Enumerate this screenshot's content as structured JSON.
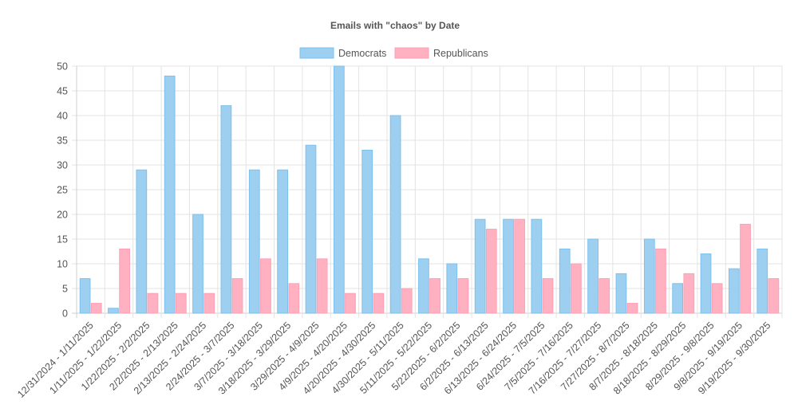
{
  "chart_data": {
    "type": "bar",
    "title": "Emails with \"chaos\" by Date",
    "xlabel": "",
    "ylabel": "",
    "ylim": [
      0,
      50
    ],
    "yticks": [
      0,
      5,
      10,
      15,
      20,
      25,
      30,
      35,
      40,
      45,
      50
    ],
    "grid": true,
    "legend_position": "top-center",
    "categories": [
      "12/31/2024 - 1/11/2025",
      "1/11/2025 - 1/22/2025",
      "1/22/2025 - 2/2/2025",
      "2/2/2025 - 2/13/2025",
      "2/13/2025 - 2/24/2025",
      "2/24/2025 - 3/7/2025",
      "3/7/2025 - 3/18/2025",
      "3/18/2025 - 3/29/2025",
      "3/29/2025 - 4/9/2025",
      "4/9/2025 - 4/20/2025",
      "4/20/2025 - 4/30/2025",
      "4/30/2025 - 5/11/2025",
      "5/11/2025 - 5/22/2025",
      "5/22/2025 - 6/2/2025",
      "6/2/2025 - 6/13/2025",
      "6/13/2025 - 6/24/2025",
      "6/24/2025 - 7/5/2025",
      "7/5/2025 - 7/16/2025",
      "7/16/2025 - 7/27/2025",
      "7/27/2025 - 8/7/2025",
      "8/7/2025 - 8/18/2025",
      "8/18/2025 - 8/29/2025",
      "8/29/2025 - 9/8/2025",
      "9/8/2025 - 9/19/2025",
      "9/19/2025 - 9/30/2025"
    ],
    "series": [
      {
        "name": "Democrats",
        "fill": "#9dd0f0",
        "stroke": "#7cc0ec",
        "values": [
          7,
          1,
          29,
          48,
          20,
          42,
          29,
          29,
          34,
          50,
          33,
          40,
          11,
          10,
          19,
          19,
          19,
          13,
          15,
          8,
          15,
          6,
          12,
          9,
          13
        ]
      },
      {
        "name": "Republicans",
        "fill": "#ffb1c1",
        "stroke": "#ff9fb4",
        "values": [
          2,
          13,
          4,
          4,
          4,
          7,
          11,
          6,
          11,
          4,
          4,
          5,
          7,
          7,
          17,
          19,
          7,
          10,
          7,
          2,
          13,
          8,
          6,
          18,
          7
        ]
      }
    ]
  }
}
